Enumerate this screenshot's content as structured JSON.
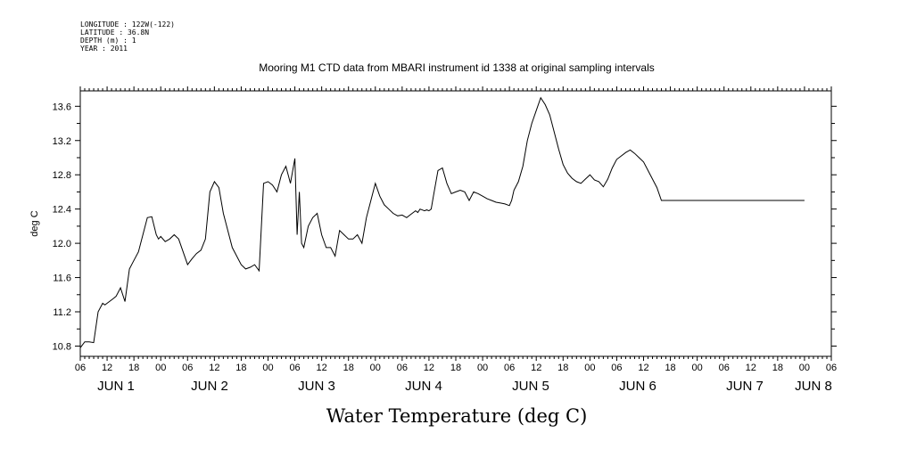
{
  "header": {
    "longitude": "LONGITUDE : 122W(-122)",
    "latitude": "LATITUDE : 36.8N",
    "depth": "DEPTH (m) : 1",
    "year": "YEAR : 2011"
  },
  "chart_data": {
    "type": "line",
    "title": "Mooring M1 CTD data from MBARI instrument id 1338 at original sampling intervals",
    "xlabel": "Water Temperature (deg C)",
    "ylabel": "deg C",
    "ylim": [
      10.68,
      13.78
    ],
    "xlim": [
      "JUN 1 06:00",
      "JUN 8 06:00"
    ],
    "y_ticks": [
      "10.8",
      "11.2",
      "11.6",
      "12.0",
      "12.4",
      "12.8",
      "13.2",
      "13.6"
    ],
    "x_hour_ticks": [
      "06",
      "12",
      "18",
      "00",
      "06",
      "12",
      "18",
      "00",
      "06",
      "12",
      "18",
      "00",
      "06",
      "12",
      "18",
      "00",
      "06",
      "12",
      "18",
      "00",
      "06",
      "12",
      "18",
      "00",
      "06",
      "12",
      "18",
      "00",
      "06"
    ],
    "day_labels": [
      "JUN  1",
      "JUN  2",
      "JUN  3",
      "JUN  4",
      "JUN  5",
      "JUN  6",
      "JUN  7",
      "JUN 8"
    ],
    "grid": false,
    "series": [
      {
        "x_hours_since_jun1_0600": [
          0,
          1,
          2,
          3,
          4,
          5,
          5.5,
          6,
          7,
          8,
          9,
          10,
          11,
          12,
          13,
          14,
          15,
          16,
          17,
          17.5,
          18,
          19,
          20,
          21,
          22,
          23,
          24,
          25,
          26,
          27,
          28,
          29,
          30,
          31,
          32,
          33,
          34,
          35,
          36,
          37,
          38,
          39,
          40,
          41,
          42,
          43,
          44,
          45,
          46,
          47,
          48,
          48.5,
          49,
          49.5,
          50,
          51,
          52,
          53,
          54,
          55,
          56,
          57,
          58,
          59,
          60,
          61,
          62,
          63,
          64,
          65,
          66,
          67,
          68,
          69,
          70,
          71,
          72,
          73,
          74,
          75,
          75.5,
          76,
          77,
          77.5,
          78,
          78.5,
          79,
          80,
          81,
          82,
          83,
          84,
          85,
          86,
          87,
          88,
          89,
          90,
          91,
          92,
          93,
          94,
          95,
          96,
          96.5,
          97,
          98,
          99,
          100,
          101,
          102,
          103,
          104,
          105,
          106,
          107,
          108,
          109,
          110,
          111,
          112,
          113,
          114,
          115,
          116,
          117,
          118,
          119,
          120,
          121,
          122,
          123,
          124,
          125,
          126,
          127,
          128,
          129,
          130,
          131,
          132,
          133,
          134,
          135,
          136,
          137,
          138,
          139,
          140,
          141,
          142,
          143,
          144,
          145,
          146,
          147,
          148,
          149,
          150,
          151,
          152,
          153,
          154,
          155,
          156,
          157,
          158,
          159,
          160,
          161,
          162,
          163,
          164,
          165,
          166,
          167,
          168
        ],
        "values": [
          10.78,
          10.85,
          10.85,
          10.84,
          11.2,
          11.3,
          11.28,
          11.3,
          11.34,
          11.38,
          11.48,
          11.32,
          11.7,
          11.8,
          11.9,
          12.1,
          12.3,
          12.31,
          12.1,
          12.05,
          12.08,
          12.02,
          12.05,
          12.1,
          12.05,
          11.9,
          11.75,
          11.82,
          11.88,
          11.92,
          12.05,
          12.6,
          12.72,
          12.65,
          12.35,
          12.15,
          11.95,
          11.85,
          11.75,
          11.7,
          11.72,
          11.75,
          11.68,
          12.7,
          12.72,
          12.68,
          12.6,
          12.8,
          12.9,
          12.7,
          12.99,
          12.1,
          12.6,
          12.0,
          11.95,
          12.2,
          12.3,
          12.35,
          12.1,
          11.95,
          11.95,
          11.85,
          12.15,
          12.1,
          12.05,
          12.05,
          12.1,
          12.0,
          12.3,
          12.5,
          12.7,
          12.55,
          12.45,
          12.4,
          12.35,
          12.32,
          12.33,
          12.3,
          12.34,
          12.38,
          12.36,
          12.4,
          12.38,
          12.39,
          12.38,
          12.4,
          12.55,
          12.85,
          12.88,
          12.7,
          12.58,
          12.6,
          12.62,
          12.6,
          12.5,
          12.6,
          12.58,
          12.55,
          12.52,
          12.5,
          12.48,
          12.47,
          12.46,
          12.44,
          12.5,
          12.62,
          12.72,
          12.9,
          13.2,
          13.4,
          13.55,
          13.7,
          13.62,
          13.5,
          13.3,
          13.1,
          12.92,
          12.82,
          12.76,
          12.72,
          12.7,
          12.75,
          12.8,
          12.74,
          12.72,
          12.66,
          12.75,
          12.88,
          12.98,
          13.02,
          13.06,
          13.09,
          13.05,
          13.0,
          12.95,
          12.85,
          12.75,
          12.65,
          12.5,
          12.5,
          12.5,
          12.5,
          12.5,
          12.5,
          12.5,
          12.5,
          12.5,
          12.5,
          12.5,
          12.5,
          12.5,
          12.5,
          12.5,
          12.5,
          12.5,
          12.5,
          12.5,
          12.5,
          12.5,
          12.5,
          12.5,
          12.5,
          12.5,
          12.5,
          12.5,
          12.5,
          12.5,
          12.5,
          12.5,
          12.5,
          12.5
        ]
      }
    ]
  }
}
